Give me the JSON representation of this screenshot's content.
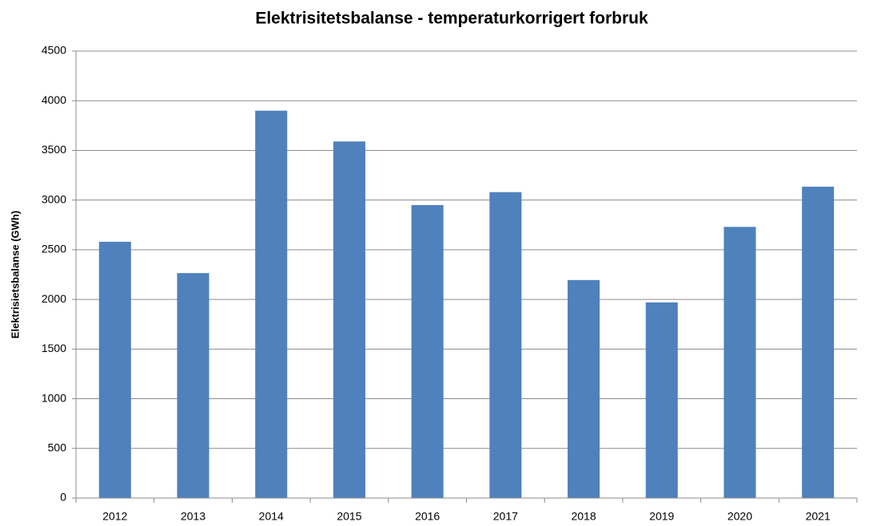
{
  "chart_data": {
    "type": "bar",
    "title": "Elektrisitetsbalanse - temperaturkorrigert forbruk",
    "y_label": "Elektrisietsbalanse (GWh)",
    "categories": [
      "2012",
      "2013",
      "2014",
      "2015",
      "2016",
      "2017",
      "2018",
      "2019",
      "2020",
      "2021"
    ],
    "values": [
      2580,
      2265,
      3900,
      3590,
      2950,
      3080,
      2195,
      1970,
      2730,
      3135
    ],
    "color": "#4f81bd",
    "ylim": [
      0,
      4500
    ],
    "yticks": [
      0,
      500,
      1000,
      1500,
      2000,
      2500,
      3000,
      3500,
      4000,
      4500
    ],
    "grid": true
  }
}
